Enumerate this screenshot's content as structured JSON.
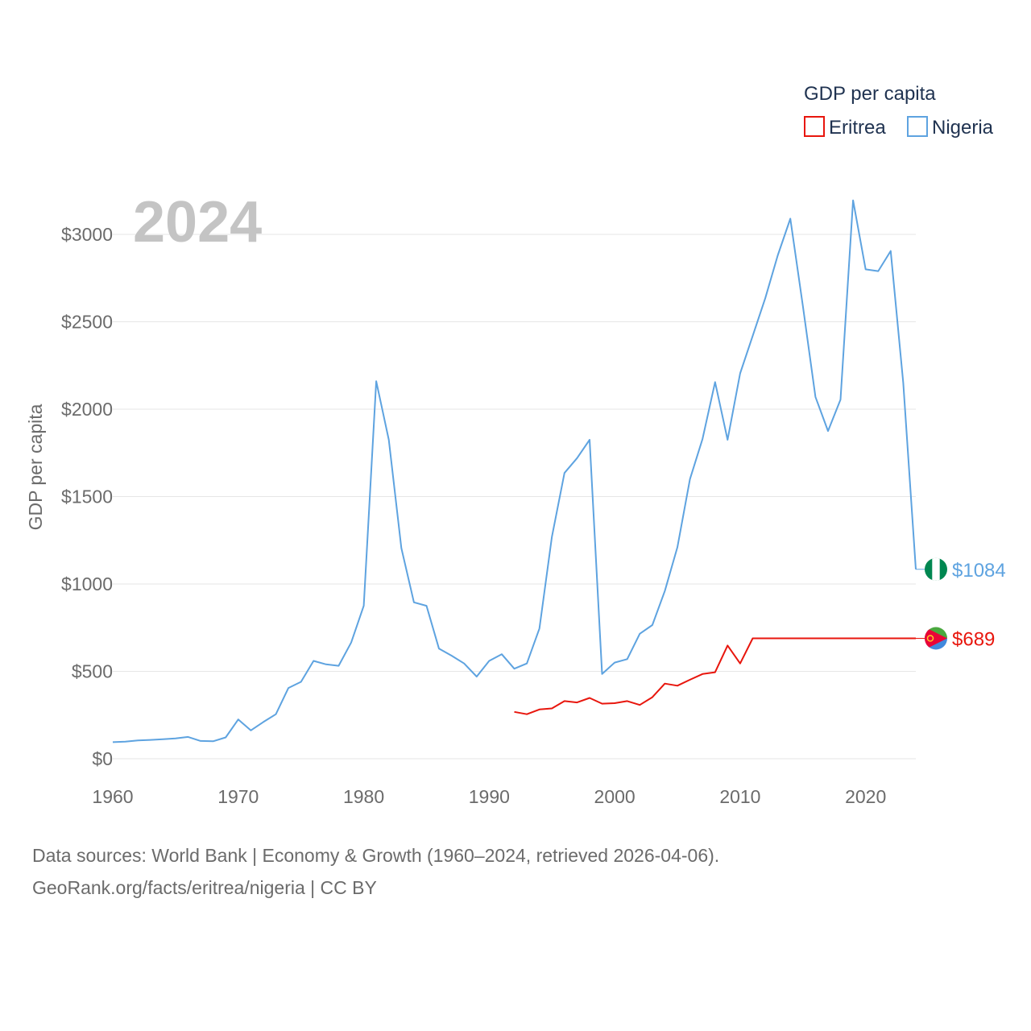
{
  "chart_data": {
    "type": "line",
    "year_label": "2024",
    "legend_title": "GDP per capita",
    "ylabel": "GDP per capita",
    "xlim": [
      1960,
      2024
    ],
    "ylim": [
      0,
      3000
    ],
    "xticks": [
      1960,
      1970,
      1980,
      1990,
      2000,
      2010,
      2020
    ],
    "xtick_labels": [
      "1960",
      "1970",
      "1980",
      "1990",
      "2000",
      "2010",
      "2020"
    ],
    "yticks": [
      0,
      500,
      1000,
      1500,
      2000,
      2500,
      3000
    ],
    "ytick_labels": [
      "$0",
      "$500",
      "$1000",
      "$1500",
      "$2000",
      "$2500",
      "$3000"
    ],
    "series": [
      {
        "name": "Eritrea",
        "color": "#e8160d",
        "flag_icon": "eritrea-flag-icon",
        "end_label": "$689",
        "x": [
          1992,
          1993,
          1994,
          1995,
          1996,
          1997,
          1998,
          1999,
          2000,
          2001,
          2002,
          2003,
          2004,
          2005,
          2006,
          2007,
          2008,
          2009,
          2010,
          2011,
          2024
        ],
        "values": [
          268,
          255,
          282,
          288,
          330,
          322,
          348,
          315,
          318,
          330,
          308,
          352,
          430,
          418,
          452,
          485,
          495,
          648,
          545,
          689,
          689
        ]
      },
      {
        "name": "Nigeria",
        "color": "#5ea3e0",
        "flag_icon": "nigeria-flag-icon",
        "end_label": "$1084",
        "x": [
          1960,
          1961,
          1962,
          1963,
          1964,
          1965,
          1966,
          1967,
          1968,
          1969,
          1970,
          1971,
          1972,
          1973,
          1974,
          1975,
          1976,
          1977,
          1978,
          1979,
          1980,
          1981,
          1982,
          1983,
          1984,
          1985,
          1986,
          1987,
          1988,
          1989,
          1990,
          1991,
          1992,
          1993,
          1994,
          1995,
          1996,
          1997,
          1998,
          1999,
          2000,
          2001,
          2002,
          2003,
          2004,
          2005,
          2006,
          2007,
          2008,
          2009,
          2010,
          2011,
          2012,
          2013,
          2014,
          2015,
          2016,
          2017,
          2018,
          2019,
          2020,
          2021,
          2022,
          2023,
          2024
        ],
        "values": [
          95,
          98,
          105,
          108,
          112,
          116,
          125,
          102,
          100,
          122,
          225,
          162,
          210,
          255,
          405,
          440,
          560,
          540,
          532,
          665,
          875,
          2160,
          1825,
          1205,
          895,
          875,
          630,
          590,
          545,
          470,
          560,
          598,
          515,
          545,
          745,
          1270,
          1635,
          1720,
          1825,
          485,
          550,
          570,
          715,
          765,
          960,
          1210,
          1600,
          1830,
          2155,
          1825,
          2205,
          2420,
          2635,
          2880,
          3090,
          2590,
          2070,
          1875,
          2055,
          3195,
          2800,
          2790,
          2905,
          2150,
          1084
        ]
      }
    ]
  },
  "source": {
    "line1": "Data sources: World Bank | Economy & Growth (1960–2024, retrieved 2026-04-06).",
    "line2": "GeoRank.org/facts/eritrea/nigeria | CC BY"
  }
}
